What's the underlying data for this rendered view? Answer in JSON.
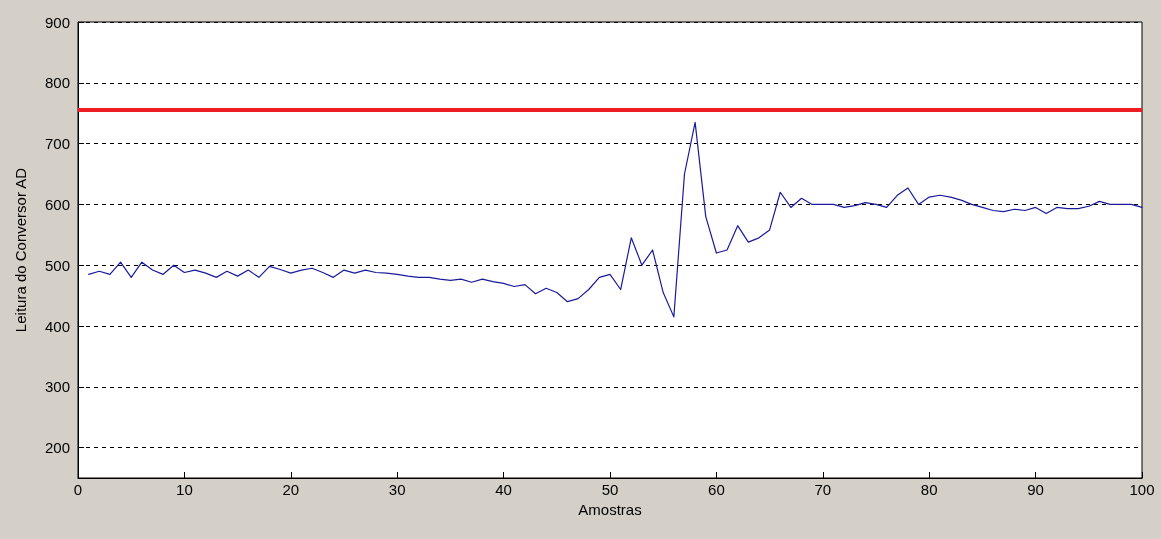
{
  "chart_data": {
    "type": "line",
    "xlabel": "Amostras",
    "ylabel": "Leitura do Conversor AD",
    "x": [
      1,
      2,
      3,
      4,
      5,
      6,
      7,
      8,
      9,
      10,
      11,
      12,
      13,
      14,
      15,
      16,
      17,
      18,
      19,
      20,
      21,
      22,
      23,
      24,
      25,
      26,
      27,
      28,
      29,
      30,
      31,
      32,
      33,
      34,
      35,
      36,
      37,
      38,
      39,
      40,
      41,
      42,
      43,
      44,
      45,
      46,
      47,
      48,
      49,
      50,
      51,
      52,
      53,
      54,
      55,
      56,
      57,
      58,
      59,
      60,
      61,
      62,
      63,
      64,
      65,
      66,
      67,
      68,
      69,
      70,
      71,
      72,
      73,
      74,
      75,
      76,
      77,
      78,
      79,
      80,
      81,
      82,
      83,
      84,
      85,
      86,
      87,
      88,
      89,
      90,
      91,
      92,
      93,
      94,
      95,
      96,
      97,
      98,
      99,
      100
    ],
    "series": [
      {
        "color": "#1a1a9c",
        "values": [
          485,
          490,
          485,
          505,
          480,
          505,
          492,
          485,
          500,
          488,
          492,
          487,
          480,
          490,
          482,
          492,
          480,
          498,
          493,
          487,
          492,
          495,
          488,
          480,
          492,
          487,
          492,
          488,
          487,
          485,
          482,
          480,
          480,
          477,
          475,
          477,
          472,
          477,
          473,
          470,
          465,
          468,
          453,
          462,
          455,
          440,
          445,
          460,
          480,
          485,
          460,
          545,
          500,
          525,
          455,
          415,
          650,
          735,
          580,
          520,
          525,
          565,
          538,
          545,
          558,
          620,
          595,
          610,
          600,
          600,
          600,
          595,
          598,
          603,
          600,
          595,
          615,
          627,
          600,
          612,
          615,
          612,
          607,
          600,
          595,
          590,
          588,
          592,
          590,
          595,
          585,
          595,
          593,
          593,
          597,
          605,
          600,
          600,
          600,
          595
        ]
      }
    ],
    "xlim": [
      0,
      100
    ],
    "xticks": [
      0,
      10,
      20,
      30,
      40,
      50,
      60,
      70,
      80,
      90,
      100
    ],
    "ylim": [
      150,
      900
    ],
    "yticks": [
      200,
      300,
      400,
      500,
      600,
      700,
      800,
      900
    ],
    "grid": "y",
    "line_style": "solid",
    "marker": "none",
    "ref_lines": [
      {
        "axis": "y",
        "value": 755,
        "color": "#ee1c24",
        "line_style": "solid"
      }
    ]
  }
}
